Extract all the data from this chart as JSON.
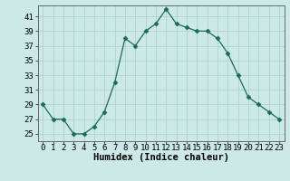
{
  "x": [
    0,
    1,
    2,
    3,
    4,
    5,
    6,
    7,
    8,
    9,
    10,
    11,
    12,
    13,
    14,
    15,
    16,
    17,
    18,
    19,
    20,
    21,
    22,
    23
  ],
  "y": [
    29,
    27,
    27,
    25,
    25,
    26,
    28,
    32,
    38,
    37,
    39,
    40,
    42,
    40,
    39.5,
    39,
    39,
    38,
    36,
    33,
    30,
    29,
    28,
    27
  ],
  "line_color": "#1a6b5a",
  "marker": "D",
  "marker_size": 2.5,
  "background_color": "#cce9e7",
  "grid_color_major": "#aed4d0",
  "grid_color_minor": "#c2dedd",
  "xlabel": "Humidex (Indice chaleur)",
  "xlabel_fontsize": 7.5,
  "ylabel_ticks": [
    25,
    27,
    29,
    31,
    33,
    35,
    37,
    39,
    41
  ],
  "ylim": [
    24.0,
    42.5
  ],
  "xlim": [
    -0.5,
    23.5
  ],
  "tick_fontsize": 6.5,
  "linewidth": 0.9
}
